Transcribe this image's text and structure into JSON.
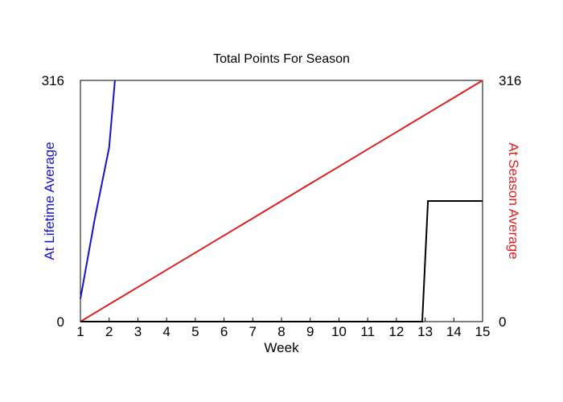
{
  "chart_data": {
    "type": "line",
    "title": "Total Points For Season",
    "xlabel": "Week",
    "ylabel_left": "At Lifetime Average",
    "ylabel_right": "At Season Average",
    "xlim": [
      1,
      15
    ],
    "ylim": [
      0,
      316
    ],
    "x_ticks": [
      1,
      2,
      3,
      4,
      5,
      6,
      7,
      8,
      9,
      10,
      11,
      12,
      13,
      14,
      15
    ],
    "y_ticks": [
      0,
      316
    ],
    "grid": false,
    "series": [
      {
        "color": "#1414c8",
        "x": [
          1,
          1.5,
          2,
          2.2
        ],
        "y": [
          30,
          135,
          228,
          316
        ]
      },
      {
        "color": "#e01e1e",
        "x": [
          1,
          2,
          3,
          4,
          5,
          6,
          7,
          8,
          9,
          10,
          11,
          12,
          13,
          14,
          15
        ],
        "y": [
          0,
          22.6,
          45.1,
          67.7,
          90.3,
          112.9,
          135.4,
          158,
          180.6,
          203.1,
          225.7,
          248.3,
          270.9,
          293.4,
          316
        ]
      },
      {
        "color": "#000000",
        "x": [
          1,
          12.9,
          13.1,
          15
        ],
        "y": [
          0,
          0,
          158,
          158
        ]
      }
    ]
  }
}
